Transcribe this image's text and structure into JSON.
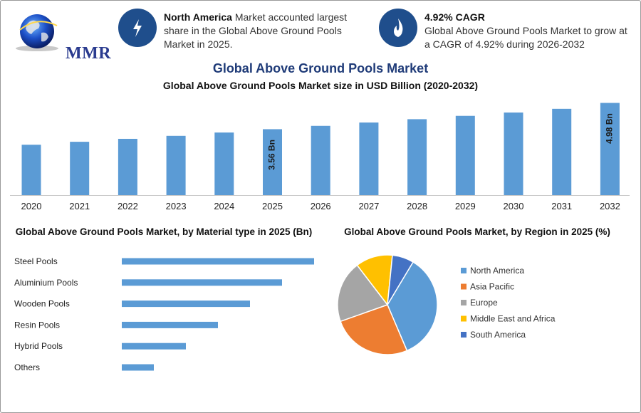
{
  "header": {
    "logo_text": "MMR",
    "info1": {
      "bold": "North America",
      "text": " Market accounted largest share in the Global Above Ground Pools Market in 2025."
    },
    "info2": {
      "bold": "4.92% CAGR",
      "text": "Global Above Ground Pools Market to grow at a CAGR of 4.92% during 2026-2032"
    }
  },
  "title": "Global Above Ground Pools Market",
  "chart_data": [
    {
      "type": "bar",
      "title": "Global Above Ground Pools Market size in USD Billion (2020-2032)",
      "categories": [
        "2020",
        "2021",
        "2022",
        "2023",
        "2024",
        "2025",
        "2026",
        "2027",
        "2028",
        "2029",
        "2030",
        "2031",
        "2032"
      ],
      "values": [
        2.72,
        2.88,
        3.04,
        3.2,
        3.38,
        3.56,
        3.74,
        3.92,
        4.1,
        4.28,
        4.46,
        4.66,
        4.98
      ],
      "data_labels": {
        "2025": "3.56 Bn",
        "2032": "4.98 Bn"
      },
      "ylim": [
        0,
        5.0
      ],
      "color": "#5b9bd5"
    },
    {
      "type": "bar",
      "orientation": "horizontal",
      "title": "Global Above Ground Pools Market, by Material type in 2025 (Bn)",
      "categories": [
        "Steel Pools",
        "Aluminium Pools",
        "Wooden Pools",
        "Resin Pools",
        "Hybrid Pools",
        "Others"
      ],
      "values": [
        1.8,
        1.5,
        1.2,
        0.9,
        0.6,
        0.3
      ],
      "xlim": [
        0,
        1.8
      ],
      "color": "#5b9bd5"
    },
    {
      "type": "pie",
      "title": "Global Above Ground Pools Market, by Region in 2025 (%)",
      "labels": [
        "North America",
        "Asia Pacific",
        "Europe",
        "Middle East and Africa",
        "South America"
      ],
      "values": [
        35,
        26,
        20,
        12,
        7
      ],
      "colors": [
        "#5b9bd5",
        "#ed7d31",
        "#a5a5a5",
        "#ffc000",
        "#4472c4"
      ],
      "legend": "right"
    }
  ]
}
